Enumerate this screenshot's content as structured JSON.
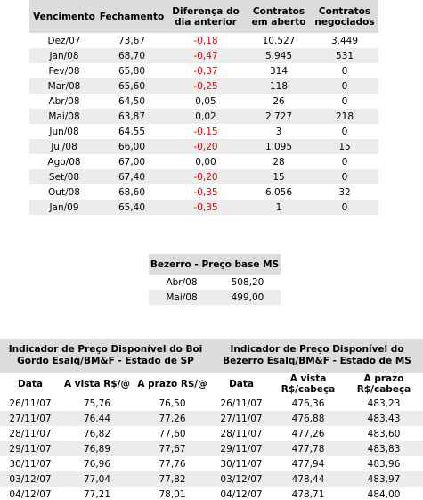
{
  "futures": {
    "headers": [
      "Vencimento",
      "Fechamento",
      "Diferença do dia anterior",
      "Contratos em aberto",
      "Contratos negociados"
    ],
    "rows": [
      [
        "Dez/07",
        "73,67",
        "-0,18",
        "10.527",
        "3.449"
      ],
      [
        "Jan/08",
        "68,70",
        "-0,47",
        "5.945",
        "531"
      ],
      [
        "Fev/08",
        "65,80",
        "-0,37",
        "314",
        "0"
      ],
      [
        "Mar/08",
        "65,60",
        "-0,25",
        "118",
        "0"
      ],
      [
        "Abr/08",
        "64,50",
        "0,05",
        "26",
        "0"
      ],
      [
        "Mai/08",
        "63,87",
        "0,02",
        "2.727",
        "218"
      ],
      [
        "Jun/08",
        "64,55",
        "-0,15",
        "3",
        "0"
      ],
      [
        "Jul/08",
        "66,00",
        "-0,20",
        "1.095",
        "15"
      ],
      [
        "Ago/08",
        "67,00",
        "0,00",
        "28",
        "0"
      ],
      [
        "Set/08",
        "67,40",
        "-0,20",
        "15",
        "0"
      ],
      [
        "Out/08",
        "68,60",
        "-0,35",
        "6.056",
        "32"
      ],
      [
        "Jan/09",
        "65,40",
        "-0,35",
        "1",
        "0"
      ]
    ]
  },
  "bezerro": {
    "title": "Bezerro - Preço base MS",
    "rows": [
      [
        "Abr/08",
        "508,20"
      ],
      [
        "Mai/08",
        "499,00"
      ]
    ]
  },
  "indicators": {
    "groups": [
      "Indicador de Preço Disponível do Boi Gordo Esalq/BM&F - Estado de SP",
      "Indicador de Preço Disponível do Bezerro Esalq/BM&F - Estado de MS"
    ],
    "headers": [
      "Data",
      "A vista R$/@",
      "A prazo R$/@",
      "Data",
      "A vista R$/cabeça",
      "A prazo R$/cabeça"
    ],
    "rows": [
      [
        "26/11/07",
        "75,76",
        "76,50",
        "26/11/07",
        "476,36",
        "483,23"
      ],
      [
        "27/11/07",
        "76,44",
        "77,26",
        "27/11/07",
        "476,88",
        "483,43"
      ],
      [
        "28/11/07",
        "76,82",
        "77,60",
        "28/11/07",
        "477,26",
        "483,60"
      ],
      [
        "29/11/07",
        "76,89",
        "77,67",
        "29/11/07",
        "477,78",
        "483,83"
      ],
      [
        "30/11/07",
        "76,96",
        "77,76",
        "30/11/07",
        "477,94",
        "483,96"
      ],
      [
        "03/12/07",
        "77,04",
        "77,82",
        "03/12/07",
        "478,44",
        "483,97"
      ],
      [
        "04/12/07",
        "77,21",
        "78,01",
        "04/12/07",
        "478,71",
        "484,00"
      ]
    ]
  }
}
